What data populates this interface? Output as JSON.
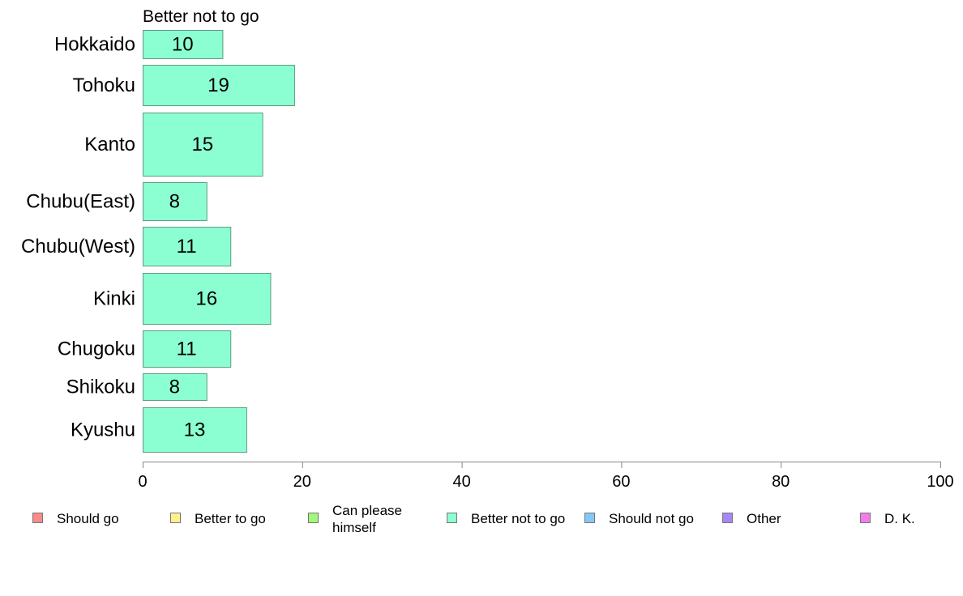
{
  "chart_data": {
    "type": "bar",
    "orientation": "horizontal",
    "subtitle": "Better not to go",
    "categories": [
      "Hokkaido",
      "Tohoku",
      "Kanto",
      "Chubu(East)",
      "Chubu(West)",
      "Kinki",
      "Chugoku",
      "Shikoku",
      "Kyushu"
    ],
    "series": [
      {
        "name": "Better not to go",
        "color": "#8cffd2",
        "values": [
          10,
          19,
          15,
          8,
          11,
          16,
          11,
          8,
          13
        ],
        "display_values": [
          "10",
          "19",
          "15",
          "8",
          "11",
          "16",
          "11",
          "8",
          "13"
        ]
      }
    ],
    "xlim": [
      0,
      100
    ],
    "x_ticks": [
      0,
      20,
      40,
      60,
      80,
      100
    ],
    "x_tick_labels": [
      "0",
      "20",
      "40",
      "60",
      "80",
      "100"
    ],
    "grid": false,
    "legend_position": "bottom",
    "legend": [
      {
        "label": "Should go",
        "color": "#f88a8a"
      },
      {
        "label": "Better to go",
        "color": "#fff08c"
      },
      {
        "label": "Can please himself",
        "lines": [
          "Can please",
          "himself"
        ],
        "color": "#a0f87c"
      },
      {
        "label": "Better not to go",
        "color": "#8cffd2"
      },
      {
        "label": "Should not go",
        "color": "#84c8f8"
      },
      {
        "label": "Other",
        "color": "#a488f8"
      },
      {
        "label": "D. K.",
        "color": "#f47ce8"
      }
    ]
  }
}
